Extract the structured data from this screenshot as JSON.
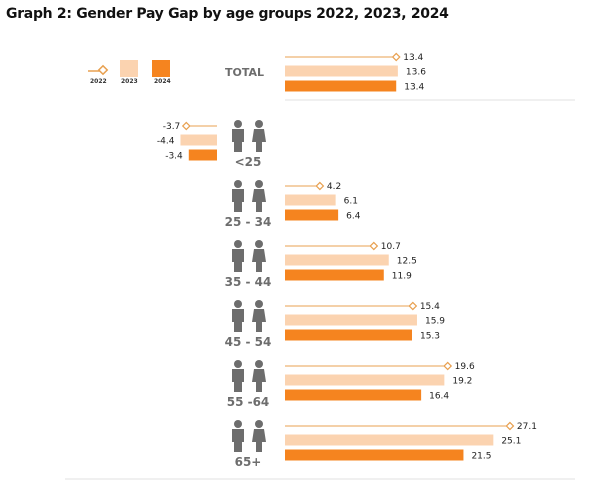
{
  "chart_data": {
    "type": "bar",
    "title": "Graph 2: Gender Pay Gap by age groups 2022, 2023, 2024",
    "xlabel": "",
    "ylabel": "",
    "categories": [
      "TOTAL",
      "<25",
      "25 - 34",
      "35 - 44",
      "45 - 54",
      "55 -64",
      "65+"
    ],
    "series": [
      {
        "name": "2022",
        "style": "line-marker",
        "color": "#e8a050",
        "values": [
          13.4,
          -3.7,
          4.2,
          10.7,
          15.4,
          19.6,
          27.1
        ]
      },
      {
        "name": "2023",
        "style": "bar",
        "color": "#fbd3b0",
        "values": [
          13.6,
          -4.4,
          6.1,
          12.5,
          15.9,
          19.2,
          25.1
        ]
      },
      {
        "name": "2024",
        "style": "bar",
        "color": "#f5841f",
        "values": [
          13.4,
          -3.4,
          6.4,
          11.9,
          15.3,
          16.4,
          21.5
        ]
      }
    ],
    "legend_position": "top-left",
    "grid": false
  },
  "colors": {
    "series_2022": "#e8a050",
    "series_2023": "#fbd3b0",
    "series_2024": "#f5841f",
    "icon": "#6d6d6d",
    "separator": "#e2e2e2"
  }
}
